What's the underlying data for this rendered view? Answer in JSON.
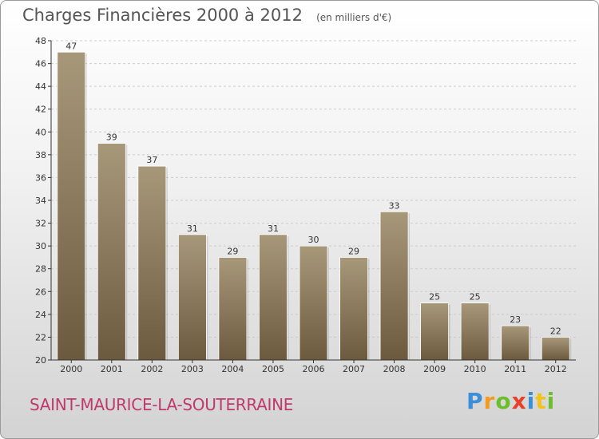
{
  "title": "Charges Financières 2000 à 2012",
  "subtitle": "(en milliers d'€)",
  "place": "SAINT-MAURICE-LA-SOUTERRAINE",
  "brand": {
    "letters": [
      "P",
      "r",
      "o",
      "x",
      "i",
      "t",
      "i"
    ],
    "colors": [
      "#3a8fd8",
      "#f29b1d",
      "#6cbf2b",
      "#e8402a",
      "#3a8fd8",
      "#f2c21d",
      "#6cbf2b"
    ]
  },
  "colors": {
    "bar_top": "#a8987a",
    "bar_bottom": "#6c5a3e",
    "axis": "#333333",
    "grid": "#cccccc",
    "text": "#333333"
  },
  "chart_data": {
    "type": "bar",
    "categories": [
      "2000",
      "2001",
      "2002",
      "2003",
      "2004",
      "2005",
      "2006",
      "2007",
      "2008",
      "2009",
      "2010",
      "2011",
      "2012"
    ],
    "values": [
      47,
      39,
      37,
      31,
      29,
      31,
      30,
      29,
      33,
      25,
      25,
      23,
      22
    ],
    "ylim": [
      20,
      48
    ],
    "yticks": [
      20,
      22,
      24,
      26,
      28,
      30,
      32,
      34,
      36,
      38,
      40,
      42,
      44,
      46,
      48
    ],
    "grid": true,
    "data_labels": true,
    "xlabel": "",
    "ylabel": ""
  }
}
